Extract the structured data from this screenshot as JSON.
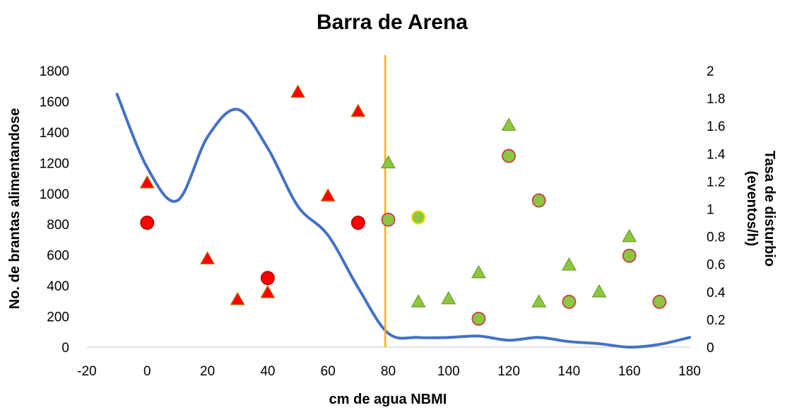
{
  "chart_data": {
    "type": "scatter",
    "title": "Barra de Arena",
    "xlabel": "cm de agua NBMI",
    "ylabel": "No. de brantas alimentandose",
    "y2label_line1": "Tasa de disturbio",
    "y2label_line2": "(eventos/h)",
    "xlim": [
      -20,
      180
    ],
    "ylim": [
      0,
      1800
    ],
    "y2lim": [
      0,
      2
    ],
    "x_ticks": [
      "-20",
      "0",
      "20",
      "40",
      "60",
      "80",
      "100",
      "120",
      "140",
      "160",
      "180"
    ],
    "y_ticks": [
      "0",
      "200",
      "400",
      "600",
      "800",
      "1000",
      "1200",
      "1400",
      "1600",
      "1800"
    ],
    "y2_ticks": [
      "0",
      "0.2",
      "0.4",
      "0.6",
      "0.8",
      "1",
      "1.2",
      "1.4",
      "1.6",
      "1.8",
      "2"
    ],
    "grid": false,
    "legend": "none",
    "reference_line": {
      "x": 79,
      "color": "#f2b600"
    },
    "series": [
      {
        "marker": "circle",
        "axis": "left",
        "fill": "#ff0000",
        "stroke": "#c00000",
        "points": [
          [
            0,
            810
          ],
          [
            40,
            450
          ],
          [
            70,
            810
          ]
        ]
      },
      {
        "marker": "triangle",
        "axis": "left",
        "fill": "#ff0000",
        "stroke": "#b07000",
        "points": [
          [
            0,
            1070
          ],
          [
            20,
            575
          ],
          [
            30,
            310
          ],
          [
            40,
            355
          ],
          [
            50,
            1660
          ],
          [
            60,
            985
          ],
          [
            70,
            1535
          ]
        ]
      },
      {
        "marker": "triangle",
        "axis": "left",
        "fill": "#8dc63f",
        "stroke": "#6ca02c",
        "points": [
          [
            80,
            1200
          ],
          [
            90,
            295
          ],
          [
            100,
            315
          ],
          [
            110,
            485
          ],
          [
            120,
            1445
          ],
          [
            130,
            295
          ],
          [
            140,
            535
          ],
          [
            150,
            360
          ],
          [
            160,
            720
          ]
        ]
      },
      {
        "marker": "circle",
        "axis": "left",
        "fill": "#8dc63f",
        "stroke": "#c0504d",
        "points": [
          [
            80,
            830
          ],
          [
            110,
            185
          ],
          [
            120,
            1245
          ],
          [
            130,
            955
          ],
          [
            140,
            295
          ],
          [
            160,
            595
          ],
          [
            170,
            295
          ]
        ]
      },
      {
        "marker": "circle",
        "axis": "left",
        "fill": "#8dc63f",
        "stroke": "#ffd700",
        "points": [
          [
            90,
            845
          ]
        ]
      },
      {
        "marker": "line",
        "axis": "right",
        "stroke": "#4472c4",
        "points": [
          [
            -10,
            1.83
          ],
          [
            0,
            1.3
          ],
          [
            10,
            1.06
          ],
          [
            20,
            1.52
          ],
          [
            30,
            1.72
          ],
          [
            40,
            1.44
          ],
          [
            50,
            1.02
          ],
          [
            60,
            0.81
          ],
          [
            70,
            0.43
          ],
          [
            80,
            0.1
          ],
          [
            90,
            0.07
          ],
          [
            100,
            0.07
          ],
          [
            110,
            0.08
          ],
          [
            120,
            0.05
          ],
          [
            130,
            0.07
          ],
          [
            140,
            0.04
          ],
          [
            150,
            0.025
          ],
          [
            160,
            0.0
          ],
          [
            170,
            0.02
          ],
          [
            180,
            0.07
          ]
        ]
      }
    ]
  }
}
